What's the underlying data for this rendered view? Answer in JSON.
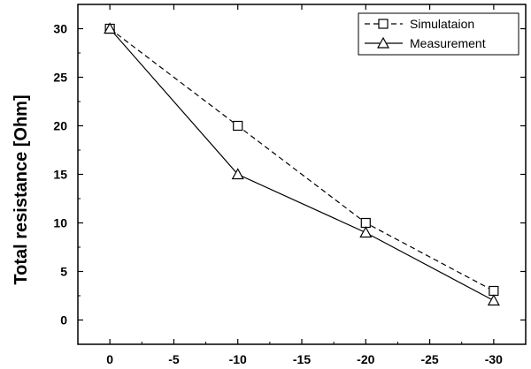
{
  "chart_data": {
    "type": "line",
    "title": "",
    "xlabel": "",
    "ylabel": "Total resistance [Ohm]",
    "x": [
      0,
      -10,
      -20,
      -30
    ],
    "xlim": [
      2.5,
      -32.5
    ],
    "ylim": [
      -2.5,
      32.5
    ],
    "xticks": [
      0,
      -5,
      -10,
      -15,
      -20,
      -25,
      -30
    ],
    "xtick_labels": [
      "0",
      "-5",
      "-10",
      "-15",
      "-20",
      "-25",
      "-30"
    ],
    "yticks": [
      0,
      5,
      10,
      15,
      20,
      25,
      30
    ],
    "ytick_labels": [
      "0",
      "5",
      "10",
      "15",
      "20",
      "25",
      "30"
    ],
    "grid": false,
    "legend_position": "top-right",
    "series": [
      {
        "name": "Simulataion",
        "values": [
          30,
          20,
          10,
          3
        ],
        "line_style": "dashed",
        "marker": "square",
        "color": "#000000"
      },
      {
        "name": "Measurement",
        "values": [
          30,
          15,
          9,
          2
        ],
        "line_style": "solid",
        "marker": "triangle",
        "color": "#000000"
      }
    ]
  }
}
